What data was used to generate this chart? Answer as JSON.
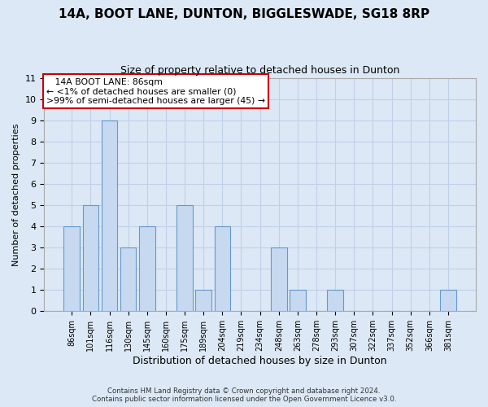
{
  "title_line1": "14A, BOOT LANE, DUNTON, BIGGLESWADE, SG18 8RP",
  "title_line2": "Size of property relative to detached houses in Dunton",
  "xlabel": "Distribution of detached houses by size in Dunton",
  "ylabel": "Number of detached properties",
  "bin_labels": [
    "86sqm",
    "101sqm",
    "116sqm",
    "130sqm",
    "145sqm",
    "160sqm",
    "175sqm",
    "189sqm",
    "204sqm",
    "219sqm",
    "234sqm",
    "248sqm",
    "263sqm",
    "278sqm",
    "293sqm",
    "307sqm",
    "322sqm",
    "337sqm",
    "352sqm",
    "366sqm",
    "381sqm"
  ],
  "bar_heights": [
    4,
    5,
    9,
    3,
    4,
    0,
    5,
    1,
    4,
    0,
    0,
    3,
    1,
    0,
    1,
    0,
    0,
    0,
    0,
    0,
    1
  ],
  "bar_color": "#c6d9f0",
  "bar_edge_color": "#6699cc",
  "ylim": [
    0,
    11
  ],
  "yticks": [
    0,
    1,
    2,
    3,
    4,
    5,
    6,
    7,
    8,
    9,
    10,
    11
  ],
  "annotation_title": "14A BOOT LANE: 86sqm",
  "annotation_line1": "← <1% of detached houses are smaller (0)",
  "annotation_line2": ">99% of semi-detached houses are larger (45) →",
  "annotation_box_color": "#ffffff",
  "annotation_border_color": "#cc0000",
  "footer_line1": "Contains HM Land Registry data © Crown copyright and database right 2024.",
  "footer_line2": "Contains public sector information licensed under the Open Government Licence v3.0.",
  "bg_color": "#dce8f5",
  "grid_color": "#c0d0e8",
  "spine_color": "#aaaaaa"
}
